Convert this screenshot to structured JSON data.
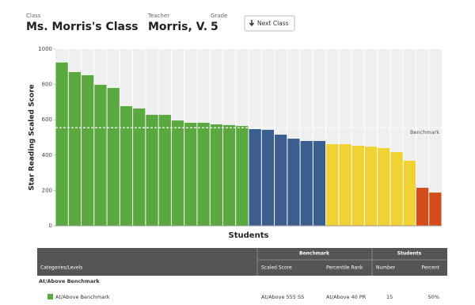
{
  "header": {
    "class_label": "Class",
    "class_name": "Ms. Morris's Class",
    "teacher_label": "Teacher",
    "teacher_name": "Morris, V.",
    "grade_label": "Grade",
    "grade": "5",
    "button": "Next Class"
  },
  "chart_data": {
    "type": "bar",
    "y_label": "Star Reading Scaled Score",
    "x_label": "Students",
    "values": [
      924,
      870,
      852,
      798,
      780,
      677,
      664,
      628,
      628,
      596,
      583,
      583,
      574,
      570,
      565,
      547,
      543,
      516,
      493,
      480,
      480,
      462,
      462,
      453,
      448,
      440,
      417,
      368,
      215,
      188
    ],
    "colors": [
      "#5aa83f",
      "#5aa83f",
      "#5aa83f",
      "#5aa83f",
      "#5aa83f",
      "#5aa83f",
      "#5aa83f",
      "#5aa83f",
      "#5aa83f",
      "#5aa83f",
      "#5aa83f",
      "#5aa83f",
      "#5aa83f",
      "#5aa83f",
      "#5aa83f",
      "#3a5f8f",
      "#3a5f8f",
      "#3a5f8f",
      "#3a5f8f",
      "#3a5f8f",
      "#3a5f8f",
      "#f0d232",
      "#f0d232",
      "#f0d232",
      "#f0d232",
      "#f0d232",
      "#f0d232",
      "#f0d232",
      "#d44c1a",
      "#d44c1a"
    ],
    "ylim": [
      0,
      1000
    ],
    "yticks": [
      0,
      200,
      400,
      600,
      800,
      1000
    ],
    "grid": true,
    "benchmark": {
      "value": 555,
      "label": "Benchmark"
    }
  },
  "table": {
    "group_headers": [
      "Benchmark",
      "Students"
    ],
    "columns": [
      "Categories/Levels",
      "Scaled Score",
      "Percentile Rank",
      "Number",
      "Percent"
    ],
    "section": "At/Above Benchmark",
    "rows": [
      [
        "At/Above Benchmark",
        "At/Above 555 SS",
        "At/Above 40 PR",
        "15",
        "50%"
      ]
    ],
    "row_colors": [
      "#5aa83f"
    ]
  }
}
